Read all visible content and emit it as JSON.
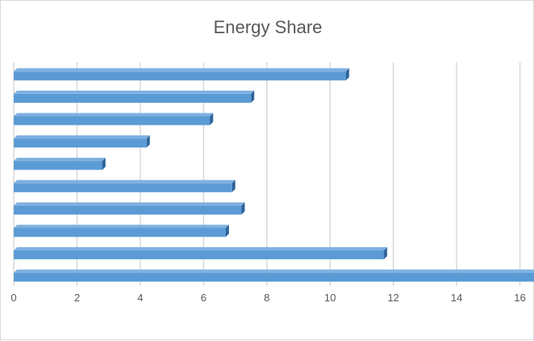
{
  "chart_data": {
    "type": "bar",
    "orientation": "horizontal",
    "style": "3d-clustered-bar",
    "title": "Energy Share",
    "xlabel": "",
    "ylabel": "",
    "xlim": [
      0,
      16.5
    ],
    "x_ticks": [
      "0",
      "2",
      "4",
      "6",
      "8",
      "10",
      "12",
      "14",
      "16"
    ],
    "categories": [
      "",
      "",
      "",
      "",
      "",
      "",
      "",
      "",
      "",
      ""
    ],
    "values": [
      10.5,
      7.5,
      6.2,
      4.2,
      2.8,
      6.9,
      7.2,
      6.7,
      11.7,
      16.5
    ],
    "grid": "vertical",
    "legend": "none",
    "colors": {
      "bar_front": "#5b9bd5",
      "bar_top": "#7fb1e0",
      "bar_side": "#2e6299",
      "grid": "#d9d9d9",
      "text": "#595959"
    }
  }
}
